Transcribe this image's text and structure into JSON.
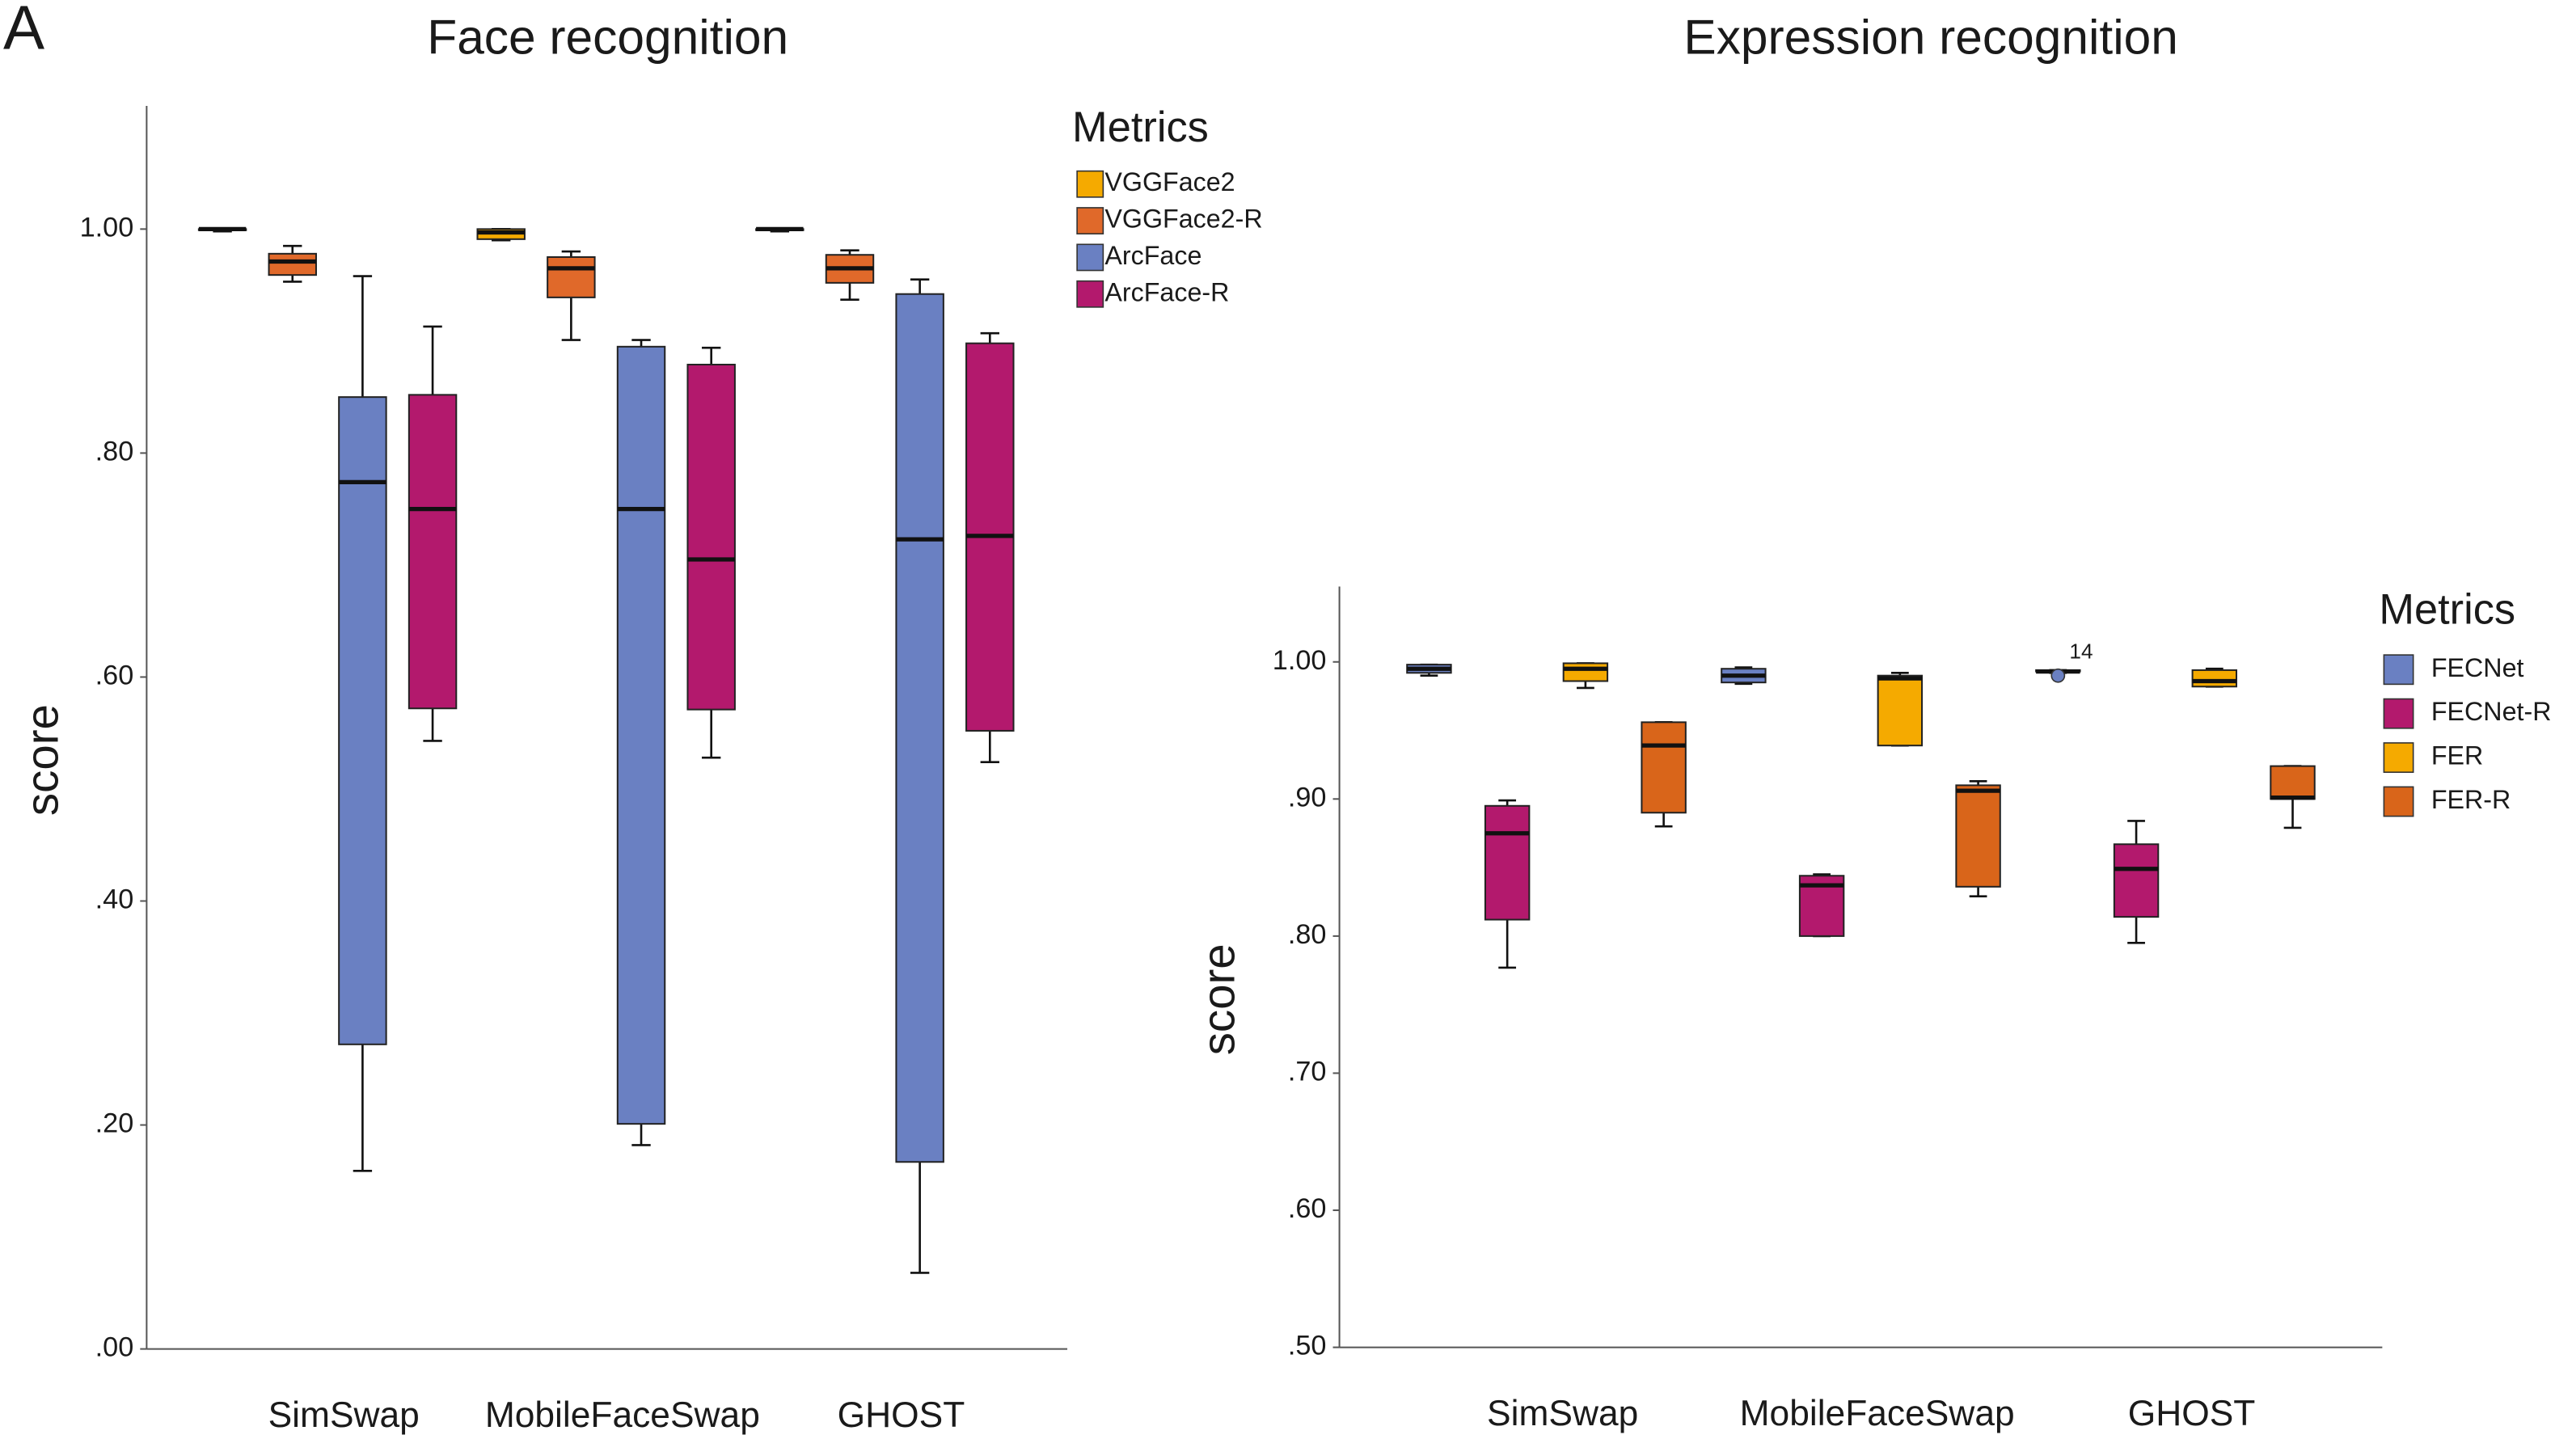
{
  "panel_label": "A",
  "chart_data": [
    {
      "type": "box",
      "title": "Face recognition",
      "y_label": "score",
      "categories": [
        "SimSwap",
        "MobileFaceSwap",
        "GHOST"
      ],
      "legend_title": "Metrics",
      "legend": "right",
      "grid": false,
      "ylim": [
        0,
        1.11
      ],
      "yticks": [
        {
          "value": 0,
          "label": ".00"
        },
        {
          "value": 0.2,
          "label": ".20"
        },
        {
          "value": 0.4,
          "label": ".40"
        },
        {
          "value": 0.6,
          "label": ".60"
        },
        {
          "value": 0.8,
          "label": ".80"
        },
        {
          "value": 1,
          "label": "1.00"
        }
      ],
      "series": [
        {
          "name": "VGGFace2",
          "color": "#f5aa00",
          "values": [
            [
              0.998,
              0.999,
              1.0,
              1.0,
              1.0
            ],
            [
              0.99,
              0.991,
              0.997,
              1.0,
              1.0
            ],
            [
              0.998,
              0.999,
              1.0,
              1.0,
              1.0
            ]
          ]
        },
        {
          "name": "VGGFace2-R",
          "color": "#e0692a",
          "values": [
            [
              0.953,
              0.959,
              0.971,
              0.978,
              0.985
            ],
            [
              0.901,
              0.939,
              0.965,
              0.975,
              0.98
            ],
            [
              0.937,
              0.952,
              0.965,
              0.977,
              0.981
            ]
          ]
        },
        {
          "name": "ArcFace",
          "color": "#6a80c2",
          "values": [
            [
              0.159,
              0.272,
              0.774,
              0.85,
              0.958
            ],
            [
              0.182,
              0.201,
              0.75,
              0.895,
              0.901
            ],
            [
              0.068,
              0.167,
              0.723,
              0.942,
              0.955
            ]
          ]
        },
        {
          "name": "ArcFace-R",
          "color": "#b3196d",
          "values": [
            [
              0.543,
              0.572,
              0.75,
              0.852,
              0.913
            ],
            [
              0.528,
              0.571,
              0.705,
              0.879,
              0.894
            ],
            [
              0.524,
              0.552,
              0.726,
              0.898,
              0.907
            ]
          ]
        }
      ]
    },
    {
      "type": "box",
      "title": "Expression recognition",
      "y_label": "score",
      "categories": [
        "SimSwap",
        "MobileFaceSwap",
        "GHOST"
      ],
      "legend_title": "Metrics",
      "legend": "right",
      "grid": false,
      "ylim": [
        0.5,
        1.055
      ],
      "yticks": [
        {
          "value": 0.5,
          "label": ".50"
        },
        {
          "value": 0.6,
          "label": ".60"
        },
        {
          "value": 0.7,
          "label": ".70"
        },
        {
          "value": 0.8,
          "label": ".80"
        },
        {
          "value": 0.9,
          "label": ".90"
        },
        {
          "value": 1,
          "label": "1.00"
        }
      ],
      "series": [
        {
          "name": "FECNet",
          "color": "#6a80c2",
          "values": [
            [
              0.99,
              0.992,
              0.995,
              0.998,
              0.998
            ],
            [
              0.984,
              0.985,
              0.99,
              0.995,
              0.996
            ],
            [
              0.992,
              0.993,
              0.993,
              0.994,
              0.994
            ]
          ],
          "outliers": [
            null,
            null,
            0.99
          ],
          "outlier_labels": [
            null,
            null,
            "14"
          ]
        },
        {
          "name": "FECNet-R",
          "color": "#b3196d",
          "values": [
            [
              0.777,
              0.812,
              0.875,
              0.895,
              0.899
            ],
            [
              0.8,
              0.8,
              0.837,
              0.844,
              0.845
            ],
            [
              0.795,
              0.814,
              0.849,
              0.867,
              0.884
            ]
          ]
        },
        {
          "name": "FER",
          "color": "#f5aa00",
          "values": [
            [
              0.981,
              0.986,
              0.995,
              0.999,
              0.999
            ],
            [
              0.939,
              0.939,
              0.988,
              0.99,
              0.992
            ],
            [
              0.982,
              0.982,
              0.986,
              0.994,
              0.995
            ]
          ]
        },
        {
          "name": "FER-R",
          "color": "#d9651a",
          "values": [
            [
              0.88,
              0.89,
              0.939,
              0.956,
              0.956
            ],
            [
              0.829,
              0.836,
              0.906,
              0.91,
              0.913
            ],
            [
              0.879,
              0.9,
              0.901,
              0.924,
              0.924
            ]
          ]
        }
      ]
    }
  ]
}
